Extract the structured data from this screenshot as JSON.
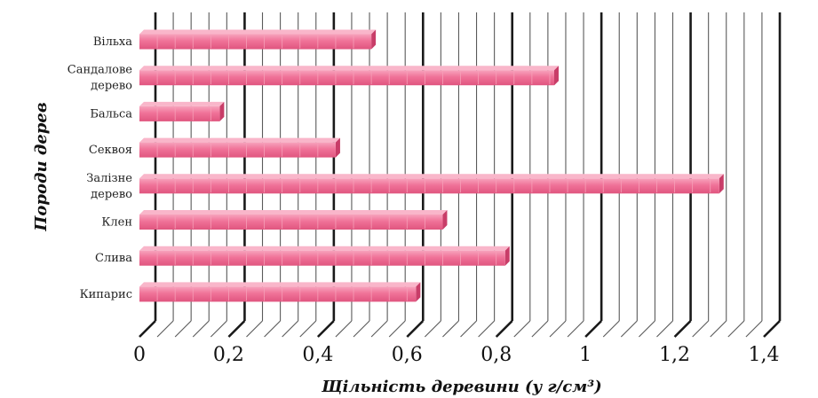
{
  "chart_data": {
    "type": "bar",
    "orientation": "horizontal",
    "title": "",
    "xlabel": "Щільність деревини (у г/см³)",
    "ylabel": "Породи дерев",
    "categories": [
      [
        "Вільха"
      ],
      [
        "Сандалове",
        "дерево"
      ],
      [
        "Бальса"
      ],
      [
        "Секвоя"
      ],
      [
        "Залізне",
        "дерево"
      ],
      [
        "Клен"
      ],
      [
        "Слива"
      ],
      [
        "Кипарис"
      ]
    ],
    "values": [
      0.52,
      0.93,
      0.18,
      0.44,
      1.3,
      0.68,
      0.82,
      0.62
    ],
    "xlim": [
      0,
      1.4
    ],
    "x_ticks": [
      "0",
      "0,2",
      "0,4",
      "0,6",
      "0,8",
      "1",
      "1,2",
      "1,4"
    ],
    "grid": true,
    "bar_color": "#f07298"
  }
}
